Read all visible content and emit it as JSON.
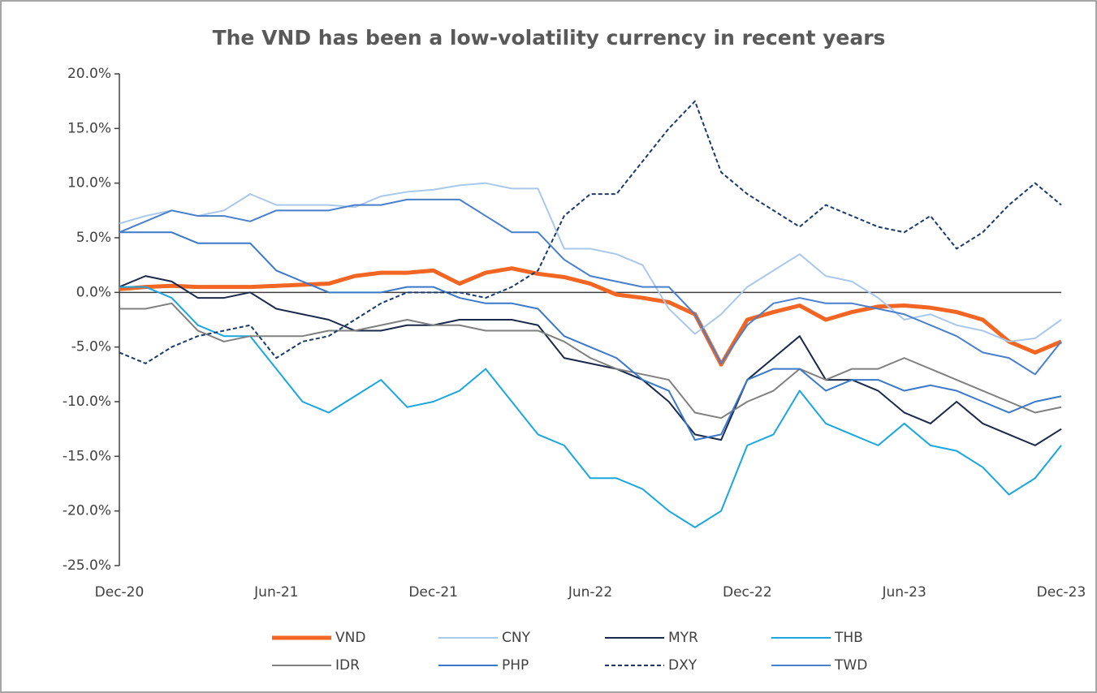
{
  "chart_data": {
    "type": "line",
    "title": "The VND has been a low-volatility currency in recent years",
    "categories": [
      "Dec-20",
      null,
      null,
      null,
      null,
      null,
      "Jun-21",
      null,
      null,
      null,
      null,
      null,
      "Dec-21",
      null,
      null,
      null,
      null,
      null,
      "Jun-22",
      null,
      null,
      null,
      null,
      null,
      "Dec-22",
      null,
      null,
      null,
      null,
      null,
      "Jun-23",
      null,
      null,
      null,
      null,
      null,
      "Dec-23"
    ],
    "ylim": [
      -25,
      20
    ],
    "yticks": [
      {
        "value": 20,
        "label": "20.0%"
      },
      {
        "value": 15,
        "label": "15.0%"
      },
      {
        "value": 10,
        "label": "10.0%"
      },
      {
        "value": 5,
        "label": "5.0%"
      },
      {
        "value": 0,
        "label": "0.0%"
      },
      {
        "value": -5,
        "label": "-5.0%"
      },
      {
        "value": -10,
        "label": "-10.0%"
      },
      {
        "value": -15,
        "label": "-15.0%"
      },
      {
        "value": -20,
        "label": "-20.0%"
      },
      {
        "value": -25,
        "label": "-25.0%"
      }
    ],
    "legend": "bottom",
    "series": [
      {
        "name": "VND",
        "color": "#f26522",
        "width": 5,
        "values": [
          0.3,
          0.5,
          0.6,
          0.5,
          0.5,
          0.5,
          0.6,
          0.7,
          0.8,
          1.5,
          1.8,
          1.8,
          2.0,
          0.8,
          1.8,
          2.2,
          1.7,
          1.4,
          0.8,
          -0.2,
          -0.5,
          -0.9,
          -2,
          -6.6,
          -2.5,
          -1.8,
          -1.2,
          -2.5,
          -1.8,
          -1.3,
          -1.2,
          -1.4,
          -1.8,
          -2.5,
          -4.5,
          -5.5,
          -4.5
        ]
      },
      {
        "name": "CNY",
        "color": "#a9c8ea",
        "width": 2,
        "values": [
          6.3,
          7,
          7.5,
          7,
          7.5,
          9,
          8,
          8,
          8,
          7.8,
          8.8,
          9.2,
          9.4,
          9.8,
          10,
          9.5,
          9.5,
          4,
          4,
          3.5,
          2.5,
          -1.5,
          -3.8,
          -2,
          0.5,
          2,
          3.5,
          1.5,
          1,
          -0.5,
          -2.5,
          -2,
          -3,
          -3.5,
          -4.5,
          -4.2,
          -2.5
        ]
      },
      {
        "name": "MYR",
        "color": "#1b2a4a",
        "width": 2,
        "values": [
          0.5,
          1.5,
          1.0,
          -0.5,
          -0.5,
          0,
          -1.5,
          -2,
          -2.5,
          -3.5,
          -3.5,
          -3,
          -3,
          -2.5,
          -2.5,
          -2.5,
          -3,
          -6,
          -6.5,
          -7,
          -8,
          -10,
          -13,
          -13.5,
          -8,
          -6,
          -4,
          -8,
          -8,
          -9,
          -11,
          -12,
          -10,
          -12,
          -13,
          -14,
          -12.5
        ]
      },
      {
        "name": "THB",
        "color": "#1aa7e0",
        "width": 2,
        "values": [
          0.5,
          0.5,
          -0.5,
          -3,
          -4,
          -4,
          -7,
          -10,
          -11,
          -9.5,
          -8,
          -10.5,
          -10,
          -9,
          -7,
          -10,
          -13,
          -14,
          -17,
          -17,
          -18,
          -20,
          -21.5,
          -20,
          -14,
          -13,
          -9,
          -12,
          -13,
          -14,
          -12,
          -14,
          -14.5,
          -16,
          -18.5,
          -17,
          -14
        ]
      },
      {
        "name": "IDR",
        "color": "#808080",
        "width": 2,
        "values": [
          -1.5,
          -1.5,
          -1,
          -3.5,
          -4.5,
          -4,
          -4,
          -4,
          -3.5,
          -3.5,
          -3,
          -2.5,
          -3,
          -3,
          -3.5,
          -3.5,
          -3.5,
          -4.5,
          -6,
          -7,
          -7.5,
          -8,
          -11,
          -11.5,
          -10,
          -9,
          -7,
          -8,
          -7,
          -7,
          -6,
          -7,
          -8,
          -9,
          -10,
          -11,
          -10.5
        ]
      },
      {
        "name": "PHP",
        "color": "#3a78c9",
        "width": 2,
        "values": [
          5.5,
          5.5,
          5.5,
          4.5,
          4.5,
          4.5,
          2,
          1,
          0,
          0,
          0,
          0.5,
          0.5,
          -0.5,
          -1,
          -1,
          -1.5,
          -4,
          -5,
          -6,
          -8,
          -9,
          -13.5,
          -13,
          -8,
          -7,
          -7,
          -9,
          -8,
          -8,
          -9,
          -8.5,
          -9,
          -10,
          -11,
          -10,
          -9.5
        ]
      },
      {
        "name": "DXY",
        "color": "#1a3a6a",
        "width": 2,
        "dashed": true,
        "values": [
          -5.5,
          -6.5,
          -5,
          -4,
          -3.5,
          -3,
          -6,
          -4.5,
          -4,
          -2.5,
          -1,
          0,
          0,
          0,
          -0.5,
          0.5,
          2,
          7,
          9,
          9,
          12,
          15,
          17.5,
          11,
          9,
          7.5,
          6,
          8,
          7,
          6,
          5.5,
          7,
          4,
          5.5,
          8,
          10,
          8
        ]
      },
      {
        "name": "TWD",
        "color": "#4a7fcc",
        "width": 2,
        "values": [
          5.5,
          6.5,
          7.5,
          7,
          7,
          6.5,
          7.5,
          7.5,
          7.5,
          8,
          8,
          8.5,
          8.5,
          8.5,
          7,
          5.5,
          5.5,
          3,
          1.5,
          1,
          0.5,
          0.5,
          -2,
          -6.5,
          -3,
          -1,
          -0.5,
          -1,
          -1,
          -1.5,
          -2,
          -3,
          -4,
          -5.5,
          -6,
          -7.5,
          -4.5
        ]
      }
    ]
  }
}
